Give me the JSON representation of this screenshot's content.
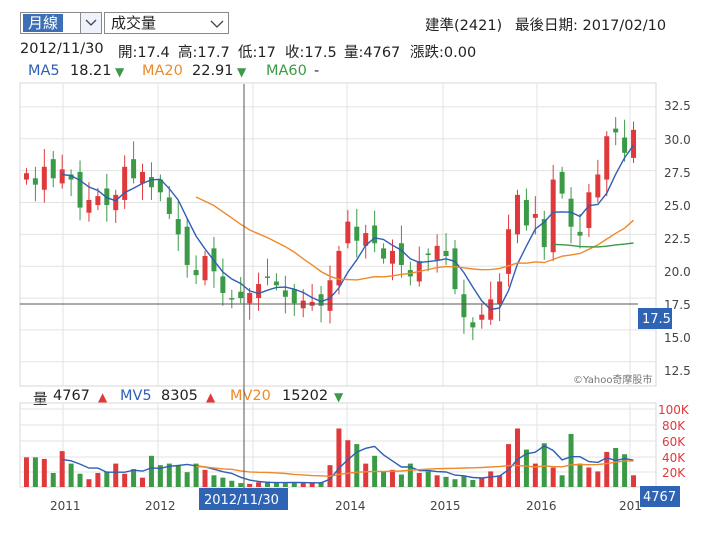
{
  "toolbar": {
    "period_label": "月線",
    "indicator_label": "成交量"
  },
  "header": {
    "stock": "建準(2421)",
    "last_date_label": "最後日期: 2017/02/10"
  },
  "ohlc_line": {
    "date": "2012/11/30",
    "open": "開:17.4",
    "high": "高:17.7",
    "low": "低:17",
    "close": "收:17.5",
    "volume": "量:4767",
    "change": "漲跌:0.00"
  },
  "ma_legend": {
    "ma5_label": "MA5",
    "ma5_value": "18.21",
    "ma5_arrow": "▼",
    "ma20_label": "MA20",
    "ma20_value": "22.91",
    "ma20_arrow": "▼",
    "ma60_label": "MA60",
    "ma60_value": "-"
  },
  "vol_legend": {
    "vol_label": "量",
    "vol_value": "4767",
    "vol_arrow": "▲",
    "mv5_label": "MV5",
    "mv5_value": "8305",
    "mv5_arrow": "▲",
    "mv20_label": "MV20",
    "mv20_value": "15202",
    "mv20_arrow": "▼"
  },
  "price_axis": [
    "32.5",
    "30.0",
    "27.5",
    "25.0",
    "22.5",
    "20.0",
    "17.5",
    "15.0",
    "12.5"
  ],
  "volume_axis": [
    "100K",
    "80K",
    "60K",
    "40K",
    "20K"
  ],
  "x_axis": [
    "2011",
    "2012",
    "2014",
    "2015",
    "2016",
    "201"
  ],
  "crosshair": {
    "date_label": "2012/11/30",
    "price_label": "17.5",
    "volume_label": "4767"
  },
  "watermark": "©Yahoo奇摩股市",
  "colors": {
    "up": "#e0393b",
    "down": "#3a9a46",
    "neutral": "#555555",
    "ma5": "#2f5fb4",
    "ma20": "#ee8a2a",
    "ma60": "#3a9a46",
    "accent": "#2f64b5",
    "grid": "#e3e3e3"
  }
}
